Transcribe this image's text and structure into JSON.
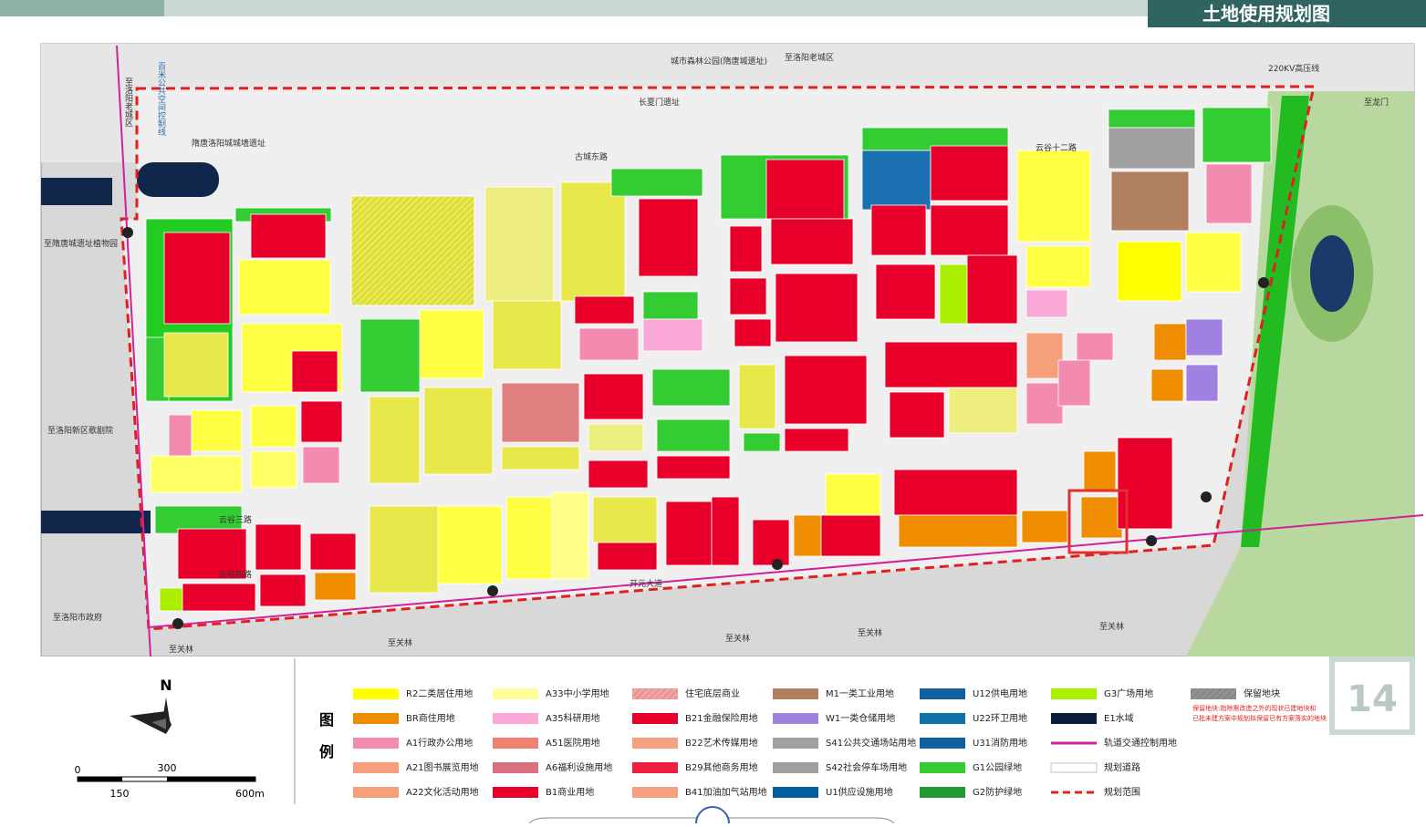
{
  "header": {
    "title": "土地使用规划图"
  },
  "page_number": "14",
  "map": {
    "labels": [
      "隋唐洛阳城城墙遗址",
      "长夏门遗址",
      "至洛阳老城区",
      "至洛阳老城区",
      "城市森林公园(隋唐城遗址)",
      "220KV高压线",
      "至隋唐城遗址植物园",
      "至洛阳新区歌剧院",
      "至洛阳市政府",
      "至关林",
      "至关林",
      "至关林",
      "至关林",
      "至关林",
      "古城东路",
      "开元大道",
      "云谷三路",
      "云谷四路",
      "云谷十二路",
      "百米公共空间控制线",
      "至龙门"
    ]
  },
  "north": "N",
  "scale": {
    "labels": [
      "0",
      "300",
      "150",
      "600m"
    ]
  },
  "legend": {
    "title": [
      "图",
      "例"
    ],
    "items": [
      {
        "label": "R2二类居住用地",
        "color": "#ffff00"
      },
      {
        "label": "BR商住用地",
        "color": "#f08c00"
      },
      {
        "label": "A1行政办公用地",
        "color": "#f38bb0"
      },
      {
        "label": "A21图书展览用地",
        "color": "#f5a07a"
      },
      {
        "label": "A22文化活动用地",
        "color": "#f5a07a"
      },
      {
        "label": "A33中小学用地",
        "color": "#ffff99"
      },
      {
        "label": "A35科研用地",
        "color": "#f9a8d8"
      },
      {
        "label": "A51医院用地",
        "color": "#f08070"
      },
      {
        "label": "A6福利设施用地",
        "color": "#d87080"
      },
      {
        "label": "B1商业用地",
        "color": "#e8002a"
      },
      {
        "label": "住宅底层商业",
        "color": "#f4a0a0",
        "style": "hatch"
      },
      {
        "label": "B21金融保险用地",
        "color": "#e8002a"
      },
      {
        "label": "B22艺术传媒用地",
        "color": "#f5a080"
      },
      {
        "label": "B29其他商务用地",
        "color": "#ee1e40"
      },
      {
        "label": "B41加油加气站用地",
        "color": "#f5a080"
      },
      {
        "label": "M1一类工业用地",
        "color": "#b08060"
      },
      {
        "label": "W1一类仓储用地",
        "color": "#a080e0"
      },
      {
        "label": "S41公共交通场站用地",
        "color": "#a0a0a0"
      },
      {
        "label": "S42社会停车场用地",
        "color": "#a0a0a0"
      },
      {
        "label": "U1供应设施用地",
        "color": "#0060a0"
      },
      {
        "label": "U12供电用地",
        "color": "#1060a0"
      },
      {
        "label": "U22环卫用地",
        "color": "#1070a8"
      },
      {
        "label": "U31消防用地",
        "color": "#1060a0"
      },
      {
        "label": "G1公园绿地",
        "color": "#33cc33"
      },
      {
        "label": "G2防护绿地",
        "color": "#229933"
      },
      {
        "label": "G3广场用地",
        "color": "#aaee00"
      },
      {
        "label": "E1水域",
        "color": "#0a1e40"
      },
      {
        "label": "轨道交通控制用地",
        "color": "#d0209a",
        "style": "line"
      },
      {
        "label": "规划道路",
        "color": "#ffffff",
        "style": "outline"
      },
      {
        "label": "规划范围",
        "color": "#e02020",
        "style": "dashed"
      },
      {
        "label": "保留地块",
        "color": "#909090",
        "style": "hatch"
      }
    ],
    "note": [
      "保留地块:指除需改造之外的现状已建地块和",
      "已批未建方案中规划拟保留已有方案落实的地块"
    ]
  }
}
